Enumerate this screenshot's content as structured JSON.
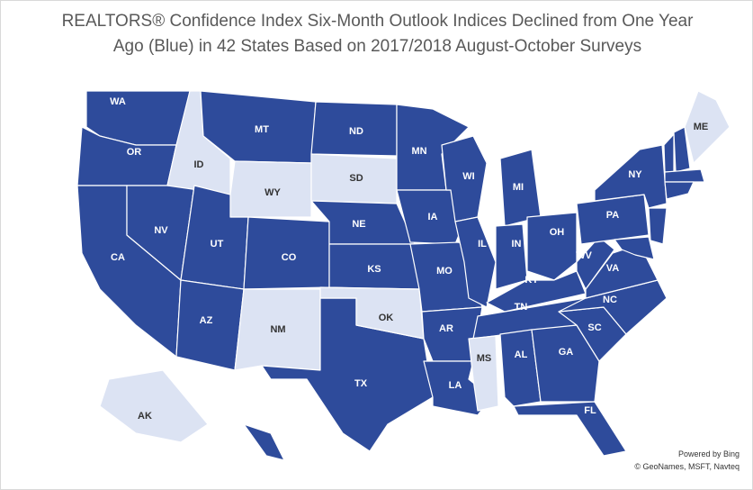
{
  "title": [
    "REALTORS® Confidence Index Six-Month Outlook Indices Declined from One Year",
    "Ago  (Blue) in 42 States Based on 2017/2018 August-October Surveys"
  ],
  "states": [
    {
      "label": "WA",
      "color": "#2e4b9b"
    },
    {
      "label": "OR",
      "color": "#2e4b9b"
    },
    {
      "label": "CA",
      "color": "#2e4b9b"
    },
    {
      "label": "NV",
      "color": "#2e4b9b"
    },
    {
      "label": "ID",
      "color": "#dce3f3"
    },
    {
      "label": "MT",
      "color": "#2e4b9b"
    },
    {
      "label": "WY",
      "color": "#dce3f3"
    },
    {
      "label": "UT",
      "color": "#2e4b9b"
    },
    {
      "label": "AZ",
      "color": "#2e4b9b"
    },
    {
      "label": "CO",
      "color": "#2e4b9b"
    },
    {
      "label": "NM",
      "color": "#dce3f3"
    },
    {
      "label": "TX",
      "color": "#2e4b9b"
    },
    {
      "label": "ND",
      "color": "#2e4b9b"
    },
    {
      "label": "SD",
      "color": "#dce3f3"
    },
    {
      "label": "NE",
      "color": "#2e4b9b"
    },
    {
      "label": "KS",
      "color": "#2e4b9b"
    },
    {
      "label": "OK",
      "color": "#dce3f3"
    },
    {
      "label": "MN",
      "color": "#2e4b9b"
    },
    {
      "label": "IA",
      "color": "#2e4b9b"
    },
    {
      "label": "MO",
      "color": "#2e4b9b"
    },
    {
      "label": "AR",
      "color": "#2e4b9b"
    },
    {
      "label": "LA",
      "color": "#2e4b9b"
    },
    {
      "label": "WI",
      "color": "#2e4b9b"
    },
    {
      "label": "IL",
      "color": "#2e4b9b"
    },
    {
      "label": "MI",
      "color": "#2e4b9b"
    },
    {
      "label": "IN",
      "color": "#2e4b9b"
    },
    {
      "label": "OH",
      "color": "#2e4b9b"
    },
    {
      "label": "KY",
      "color": "#2e4b9b"
    },
    {
      "label": "TN",
      "color": "#2e4b9b"
    },
    {
      "label": "MS",
      "color": "#dce3f3"
    },
    {
      "label": "AL",
      "color": "#2e4b9b"
    },
    {
      "label": "GA",
      "color": "#2e4b9b"
    },
    {
      "label": "FL",
      "color": "#2e4b9b"
    },
    {
      "label": "SC",
      "color": "#2e4b9b"
    },
    {
      "label": "NC",
      "color": "#2e4b9b"
    },
    {
      "label": "VA",
      "color": "#2e4b9b"
    },
    {
      "label": "WV",
      "color": "#2e4b9b"
    },
    {
      "label": "PA",
      "color": "#2e4b9b"
    },
    {
      "label": "NY",
      "color": "#2e4b9b"
    },
    {
      "label": "ME",
      "color": "#dce3f3"
    },
    {
      "label": "AK",
      "color": "#dce3f3"
    }
  ],
  "attribution": [
    "Powered by Bing",
    "© GeoNames, MSFT, Navteq"
  ]
}
